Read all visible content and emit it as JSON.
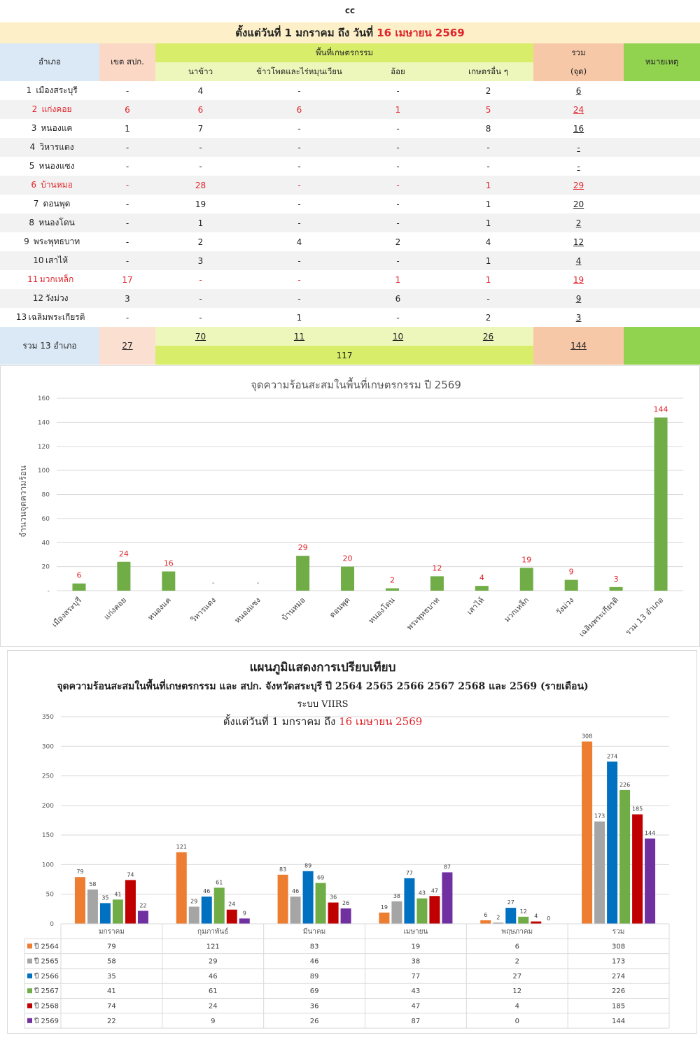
{
  "caption": "cc",
  "period": {
    "prefix": "ตั้งแต่วันที่ 1 มกราคม  ถึง วันที่",
    "end_date": "16 เมษายน 2569"
  },
  "table": {
    "headers": {
      "amphoe": "อำเภอ",
      "zone": "เขต สปก.",
      "agri_area": "พื้นที่เกษตรกรรม",
      "rice": "นาข้าว",
      "corn": "ข้าวโพดและไร่หมุนเวียน",
      "cane": "อ้อย",
      "other": "เกษตรอื่น ๆ",
      "total": "รวม",
      "total_unit": "(จุด)",
      "note": "หมายเหตุ"
    },
    "rows": [
      {
        "idx": "1",
        "name": "เมืองสระบุรี",
        "zone": "-",
        "rice": "4",
        "corn": "-",
        "cane": "-",
        "other": "2",
        "total": "6",
        "red": false,
        "alt": false
      },
      {
        "idx": "2",
        "name": "แก่งคอย",
        "zone": "6",
        "rice": "6",
        "corn": "6",
        "cane": "1",
        "other": "5",
        "total": "24",
        "red": true,
        "alt": true
      },
      {
        "idx": "3",
        "name": "หนองแค",
        "zone": "1",
        "rice": "7",
        "corn": "-",
        "cane": "-",
        "other": "8",
        "total": "16",
        "red": false,
        "alt": false
      },
      {
        "idx": "4",
        "name": "วิหารแดง",
        "zone": "-",
        "rice": "-",
        "corn": "-",
        "cane": "-",
        "other": "-",
        "total": "-",
        "red": false,
        "alt": true
      },
      {
        "idx": "5",
        "name": "หนองแซง",
        "zone": "-",
        "rice": "-",
        "corn": "-",
        "cane": "-",
        "other": "-",
        "total": "-",
        "red": false,
        "alt": false
      },
      {
        "idx": "6",
        "name": "บ้านหมอ",
        "zone": "-",
        "rice": "28",
        "corn": "-",
        "cane": "-",
        "other": "1",
        "total": "29",
        "red": true,
        "alt": true
      },
      {
        "idx": "7",
        "name": "ดอนพุด",
        "zone": "-",
        "rice": "19",
        "corn": "-",
        "cane": "-",
        "other": "1",
        "total": "20",
        "red": false,
        "alt": false
      },
      {
        "idx": "8",
        "name": "หนองโดน",
        "zone": "-",
        "rice": "1",
        "corn": "-",
        "cane": "-",
        "other": "1",
        "total": "2",
        "red": false,
        "alt": true
      },
      {
        "idx": "9",
        "name": "พระพุทธบาท",
        "zone": "-",
        "rice": "2",
        "corn": "4",
        "cane": "2",
        "other": "4",
        "total": "12",
        "red": false,
        "alt": false
      },
      {
        "idx": "10",
        "name": "เสาไห้",
        "zone": "-",
        "rice": "3",
        "corn": "-",
        "cane": "-",
        "other": "1",
        "total": "4",
        "red": false,
        "alt": true
      },
      {
        "idx": "11",
        "name": "มวกเหล็ก",
        "zone": "17",
        "rice": "-",
        "corn": "-",
        "cane": "1",
        "other": "1",
        "total": "19",
        "red": true,
        "alt": false
      },
      {
        "idx": "12",
        "name": "วังม่วง",
        "zone": "3",
        "rice": "-",
        "corn": "-",
        "cane": "6",
        "other": "-",
        "total": "9",
        "red": false,
        "alt": true
      },
      {
        "idx": "13",
        "name": "เฉลิมพระเกียรติ",
        "zone": "-",
        "rice": "-",
        "corn": "1",
        "cane": "-",
        "other": "2",
        "total": "3",
        "red": false,
        "alt": false
      }
    ],
    "summary": {
      "label": "รวม 13 อำเภอ",
      "zone": "27",
      "rice": "70",
      "corn": "11",
      "cane": "10",
      "other": "26",
      "agri_total": "117",
      "total": "144"
    }
  },
  "chart_data": [
    {
      "type": "bar",
      "title": "จุดความร้อนสะสมในพื้นที่เกษตรกรรม ปี 2569",
      "ylabel": "จำนวนจุดความร้อน",
      "xlabel": "",
      "ylim": [
        0,
        160
      ],
      "yticks": [
        "-",
        "20",
        "40",
        "60",
        "80",
        "100",
        "120",
        "140",
        "160"
      ],
      "categories": [
        "เมืองสระบุรี",
        "แก่งคอย",
        "หนองแค",
        "วิหารแดง",
        "หนองแซง",
        "บ้านหมอ",
        "ดอนพุด",
        "หนองโดน",
        "พระพุทธบาท",
        "เสาไห้",
        "มวกเหล็ก",
        "วังม่วง",
        "เฉลิมพระเกียรติ",
        "รวม 13 อำเภอ"
      ],
      "values": [
        6,
        24,
        16,
        0,
        0,
        29,
        20,
        2,
        12,
        4,
        19,
        9,
        3,
        144
      ],
      "data_labels": [
        "6",
        "24",
        "16",
        "-",
        "-",
        "29",
        "20",
        "2",
        "12",
        "4",
        "19",
        "9",
        "3",
        "144"
      ],
      "bar_color": "#70ad47",
      "label_color": "#e0242b",
      "grid": true
    },
    {
      "type": "bar",
      "title": "แผนภูมิแสดงการเปรียบเทียบ",
      "subtitle": "จุดความร้อนสะสมในพื้นที่เกษตรกรรม  และ สปก. จังหวัดสระบุรี  ปี   2564 2565 2566 2567 2568 และ 2569 (รายเดือน)",
      "system": "ระบบ VIIRS",
      "period": {
        "prefix": "ตั้งแต่วันที่ 1 มกราคม ถึง",
        "end_date": "16 เมษายน 2569"
      },
      "ylim": [
        0,
        350
      ],
      "yticks": [
        "0",
        "50",
        "100",
        "150",
        "200",
        "250",
        "300",
        "350"
      ],
      "categories": [
        "มกราคม",
        "กุมภาพันธ์",
        "มีนาคม",
        "เมษายน",
        "พฤษภาคม",
        "รวม"
      ],
      "series": [
        {
          "name": "ปี 2564",
          "color": "#ed7d31",
          "values": [
            79,
            121,
            83,
            19,
            6,
            308
          ]
        },
        {
          "name": "ปี 2565",
          "color": "#a5a5a5",
          "values": [
            58,
            29,
            46,
            38,
            2,
            173
          ]
        },
        {
          "name": "ปี 2566",
          "color": "#0070c0",
          "values": [
            35,
            46,
            89,
            77,
            27,
            274
          ]
        },
        {
          "name": "ปี 2567",
          "color": "#70ad47",
          "values": [
            41,
            61,
            69,
            43,
            12,
            226
          ]
        },
        {
          "name": "ปี 2568",
          "color": "#c00000",
          "values": [
            74,
            24,
            36,
            47,
            4,
            185
          ]
        },
        {
          "name": "ปี 2569",
          "color": "#7030a0",
          "values": [
            22,
            9,
            26,
            87,
            0,
            144
          ]
        }
      ],
      "grid": true,
      "legend": "data-table"
    }
  ]
}
